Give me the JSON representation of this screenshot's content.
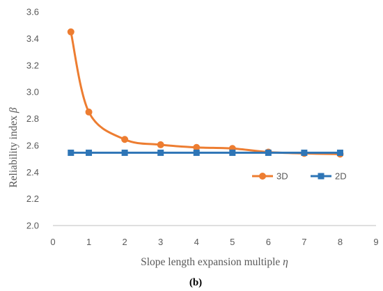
{
  "chart_data": {
    "type": "line",
    "xlabel_text": "Slope length expansion multiple ",
    "xlabel_symbol": "η",
    "ylabel_text": "Reliability index ",
    "ylabel_symbol": "β",
    "xlim": [
      0,
      9
    ],
    "ylim": [
      2.0,
      3.6
    ],
    "xticks": [
      "0",
      "1",
      "2",
      "3",
      "4",
      "5",
      "6",
      "7",
      "8",
      "9"
    ],
    "yticks": [
      "2.0",
      "2.2",
      "2.4",
      "2.6",
      "2.8",
      "3.0",
      "3.2",
      "3.4",
      "3.6"
    ],
    "grid": false,
    "legend_placement": "right",
    "series": [
      {
        "name": "3D",
        "marker": "circle",
        "color": "#ED7D31",
        "smooth": true,
        "x": [
          0.5,
          1,
          2,
          3,
          4,
          5,
          6,
          7,
          8
        ],
        "y": [
          3.45,
          2.85,
          2.645,
          2.605,
          2.585,
          2.577,
          2.55,
          2.54,
          2.535
        ]
      },
      {
        "name": "2D",
        "marker": "square",
        "color": "#2E75B6",
        "smooth": false,
        "x": [
          0.5,
          1,
          2,
          3,
          4,
          5,
          6,
          7,
          8
        ],
        "y": [
          2.545,
          2.545,
          2.545,
          2.545,
          2.545,
          2.545,
          2.545,
          2.545,
          2.545
        ]
      }
    ],
    "caption": "(b)"
  }
}
